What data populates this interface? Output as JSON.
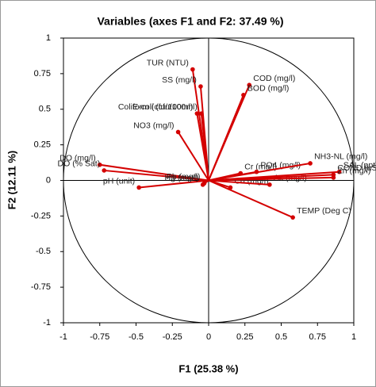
{
  "chart_data": {
    "type": "vector-biplot",
    "title": "Variables (axes F1 and F2: 37.49 %)",
    "x_label": "F1 (25.38 %)",
    "y_label": "F2 (12.11 %)",
    "color": "#d40000",
    "xlim": [
      -1,
      1
    ],
    "ylim": [
      -1,
      1
    ],
    "xticks": [
      -1,
      -0.75,
      -0.5,
      -0.25,
      0,
      0.25,
      0.5,
      0.75,
      1
    ],
    "yticks": [
      -1,
      -0.75,
      -0.5,
      -0.25,
      0,
      0.25,
      0.5,
      0.75,
      1
    ],
    "series": [
      {
        "name": "Variables",
        "labels": [
          "TUR (NTU)",
          "SS (mg/l)",
          "COD (mg/l)",
          "BOD (mg/l)",
          "Coliform (cfu/100ml)",
          "E-coli (cfu/100ml)",
          "NO3 (mg/l)",
          "DO (mg/l)",
          "DO (% Sat)",
          "pH (unit)",
          "Hg (mg/l)",
          "Pb (mg/l)",
          "Cr (mg/l)",
          "PO4 (mg/l)",
          "Cd (mg/l)",
          "As (mg/l)",
          "NH3-NL (mg/l)",
          "COND (uS)",
          "SAL (ppt)",
          "Zn (mg/l)",
          "TEMP (Deg C)"
        ],
        "x": [
          -0.11,
          -0.055,
          0.28,
          0.24,
          -0.08,
          -0.05,
          -0.21,
          -0.75,
          -0.72,
          -0.48,
          -0.04,
          -0.03,
          0.22,
          0.33,
          0.15,
          0.42,
          0.7,
          0.86,
          0.9,
          0.86,
          0.58
        ],
        "values": [
          0.78,
          0.66,
          0.67,
          0.6,
          0.47,
          0.47,
          0.34,
          0.11,
          0.07,
          -0.05,
          -0.03,
          -0.02,
          0.05,
          0.06,
          -0.05,
          -0.03,
          0.12,
          0.04,
          0.06,
          0.02,
          -0.26
        ]
      }
    ]
  }
}
